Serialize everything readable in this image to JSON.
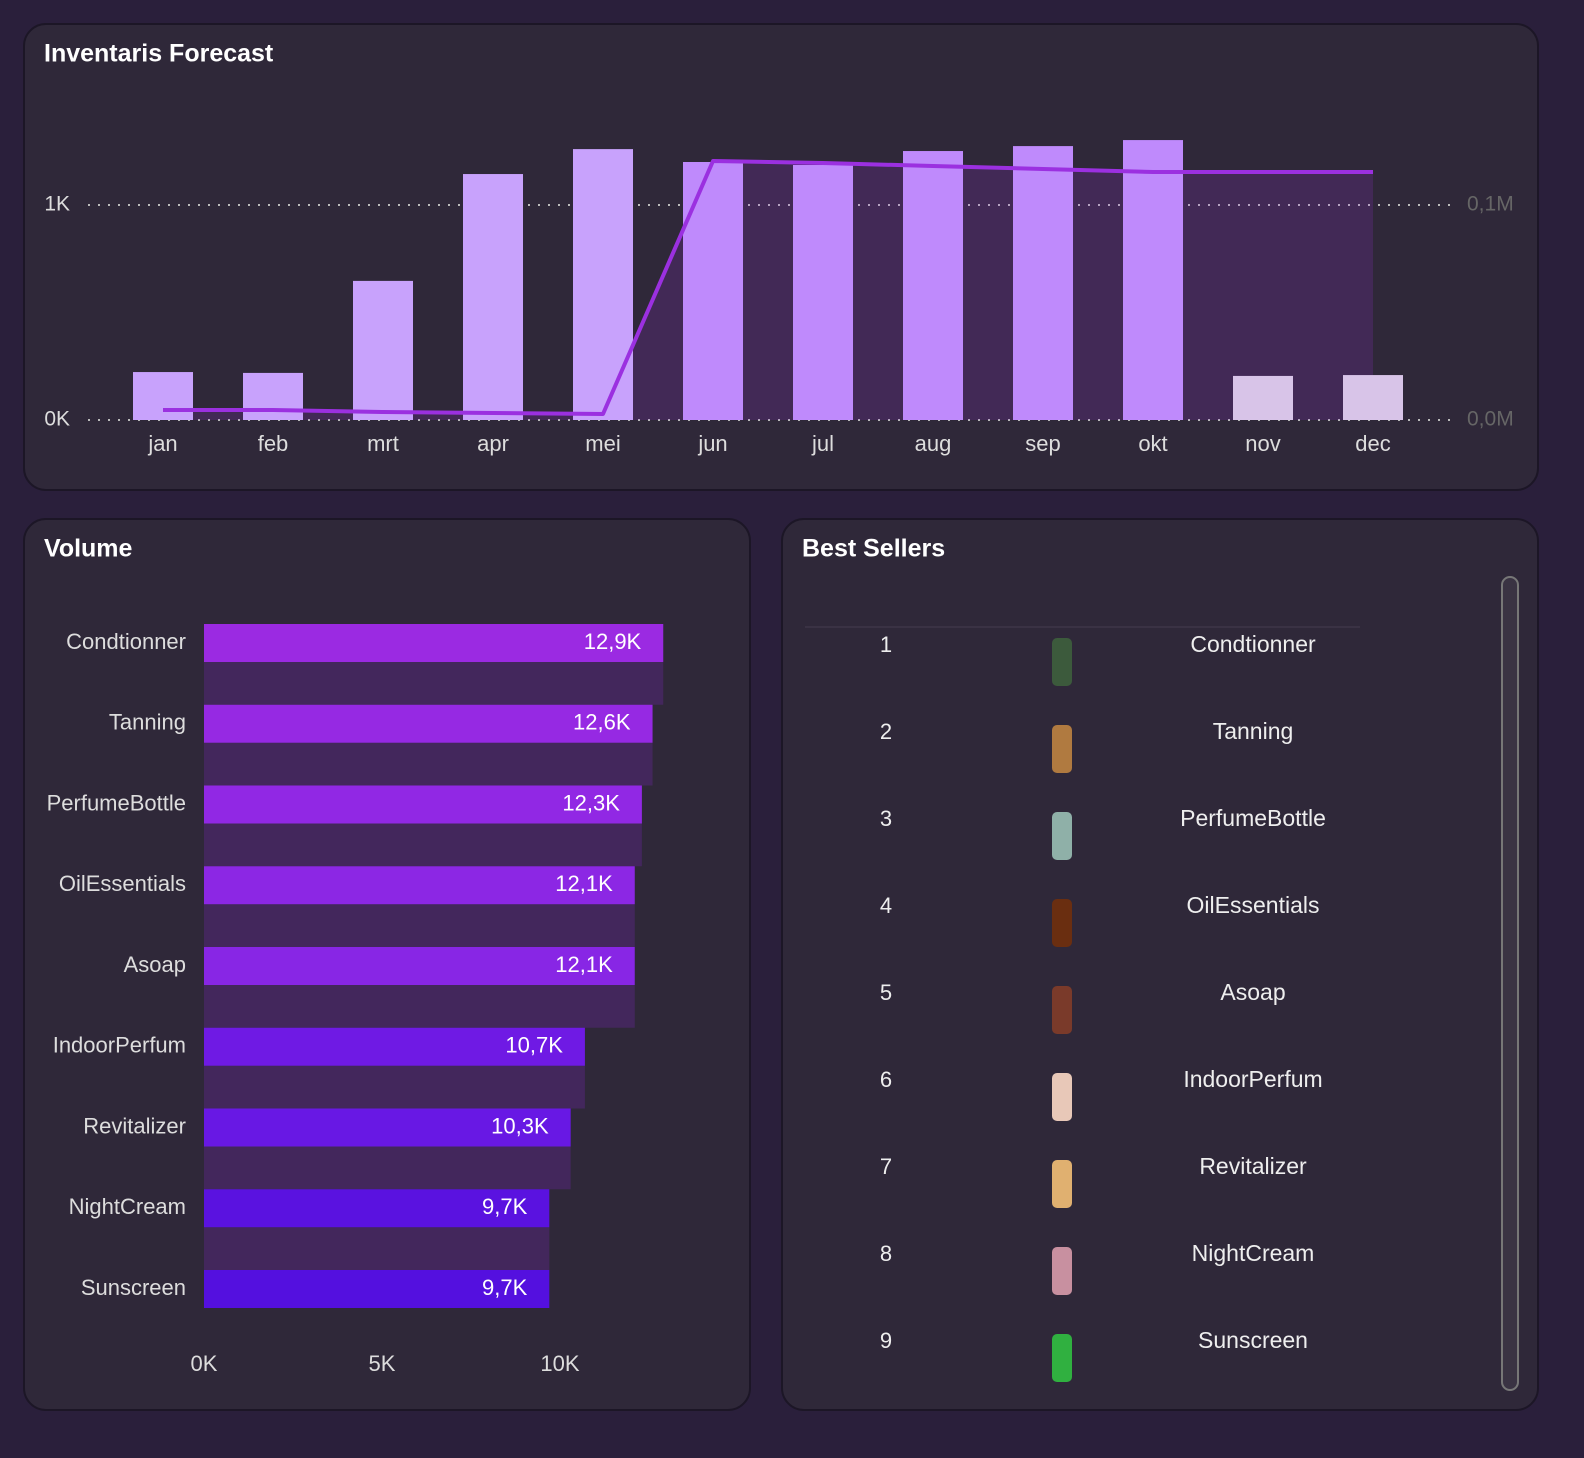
{
  "chart_data": [
    {
      "type": "bar",
      "title": "Inventaris Forecast",
      "categories": [
        "jan",
        "feb",
        "mrt",
        "apr",
        "mei",
        "jun",
        "jul",
        "aug",
        "sep",
        "okt",
        "nov",
        "dec"
      ],
      "series": [
        {
          "type": "bar",
          "colors": [
            "#c8a2fc",
            "#c8a2fc",
            "#c8a2fc",
            "#c8a2fc",
            "#c8a2fc",
            "#bf8afc",
            "#bf8afc",
            "#bf8afc",
            "#bf8afc",
            "#bf8afc",
            "#d8c4e8",
            "#d8c4e8"
          ],
          "values": [
            223,
            219,
            647,
            1144,
            1260,
            1200,
            1186,
            1251,
            1274,
            1302,
            205,
            209
          ]
        },
        {
          "type": "line",
          "axis": "y2",
          "color": "#9b30e0",
          "values": [
            4650,
            4650,
            3720,
            3256,
            2791,
            120465,
            119535,
            118140,
            116744,
            115349,
            115349,
            115349
          ]
        }
      ],
      "ylim": [
        0,
        1500
      ],
      "yticks": [
        {
          "value": 0,
          "label": "0K"
        },
        {
          "value": 1000,
          "label": "1K"
        }
      ],
      "y2lim": [
        0,
        150000
      ],
      "y2ticks": [
        {
          "value": 0,
          "label": "0,0M"
        },
        {
          "value": 100000,
          "label": "0,1M"
        }
      ],
      "grid": true
    },
    {
      "type": "hbar",
      "title": "Volume",
      "categories": [
        "Condtionner",
        "Tanning",
        "PerfumeBottle",
        "OilEssentials",
        "Asoap",
        "IndoorPerfum",
        "Revitalizer",
        "NightCream",
        "Sunscreen"
      ],
      "values": [
        12900,
        12600,
        12300,
        12100,
        12100,
        10700,
        10300,
        9700,
        9700
      ],
      "value_labels": [
        "12,9K",
        "12,6K",
        "12,3K",
        "12,1K",
        "12,1K",
        "10,7K",
        "10,3K",
        "9,7K",
        "9,7K"
      ],
      "colors": [
        "#9b2ae2",
        "#9629e3",
        "#9128e4",
        "#8c27e4",
        "#8826e5",
        "#6f1ae4",
        "#6818e4",
        "#5a12e0",
        "#5410df"
      ],
      "xlim": [
        0,
        14000
      ],
      "xticks": [
        {
          "value": 0,
          "label": "0K"
        },
        {
          "value": 5000,
          "label": "5K"
        },
        {
          "value": 10000,
          "label": "10K"
        }
      ]
    }
  ],
  "best_sellers": {
    "title": "Best Sellers",
    "rows": [
      [
        1,
        "Condtionner"
      ],
      [
        2,
        "Tanning"
      ],
      [
        3,
        "PerfumeBottle"
      ],
      [
        4,
        "OilEssentials"
      ],
      [
        5,
        "Asoap"
      ],
      [
        6,
        "IndoorPerfum"
      ],
      [
        7,
        "Revitalizer"
      ],
      [
        8,
        "NightCream"
      ],
      [
        9,
        "Sunscreen"
      ]
    ]
  }
}
